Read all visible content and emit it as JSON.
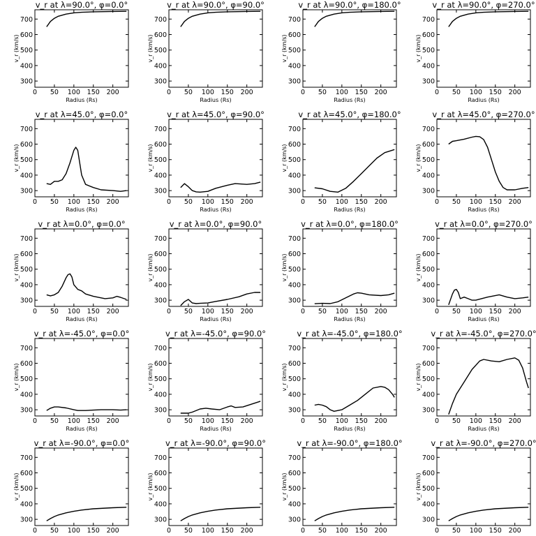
{
  "chart_data": [
    {
      "type": "line",
      "title": "v_r at λ=90.0°, φ=0.0°",
      "xlabel": "Radius (Rs)",
      "ylabel": "v_r (km/s)",
      "xlim": [
        0,
        240
      ],
      "ylim": [
        260,
        760
      ],
      "x_ticks": [
        0,
        50,
        100,
        150,
        200
      ],
      "y_ticks": [
        300,
        400,
        500,
        600,
        700
      ],
      "x": [
        30,
        40,
        50,
        60,
        80,
        100,
        120,
        150,
        200,
        235
      ],
      "y": [
        650,
        685,
        705,
        718,
        732,
        740,
        744,
        747,
        749,
        750
      ]
    },
    {
      "type": "line",
      "title": "v_r at λ=90.0°, φ=90.0°",
      "xlabel": "Radius (Rs)",
      "ylabel": "v_r (km/s)",
      "xlim": [
        0,
        240
      ],
      "ylim": [
        260,
        760
      ],
      "x_ticks": [
        0,
        50,
        100,
        150,
        200
      ],
      "y_ticks": [
        300,
        400,
        500,
        600,
        700
      ],
      "x": [
        30,
        40,
        50,
        60,
        80,
        100,
        120,
        150,
        200,
        235
      ],
      "y": [
        650,
        685,
        705,
        718,
        732,
        740,
        744,
        747,
        749,
        750
      ]
    },
    {
      "type": "line",
      "title": "v_r at λ=90.0°, φ=180.0°",
      "xlabel": "Radius (Rs)",
      "ylabel": "v_r (km/s)",
      "xlim": [
        0,
        240
      ],
      "ylim": [
        260,
        760
      ],
      "x_ticks": [
        0,
        50,
        100,
        150,
        200
      ],
      "y_ticks": [
        300,
        400,
        500,
        600,
        700
      ],
      "x": [
        30,
        40,
        50,
        60,
        80,
        100,
        120,
        150,
        200,
        235
      ],
      "y": [
        650,
        685,
        705,
        718,
        732,
        740,
        744,
        747,
        749,
        750
      ]
    },
    {
      "type": "line",
      "title": "v_r at λ=90.0°, φ=270.0°",
      "xlabel": "Radius (Rs)",
      "ylabel": "v_r (km/s)",
      "xlim": [
        0,
        240
      ],
      "ylim": [
        260,
        760
      ],
      "x_ticks": [
        0,
        50,
        100,
        150,
        200
      ],
      "y_ticks": [
        300,
        400,
        500,
        600,
        700
      ],
      "x": [
        30,
        40,
        50,
        60,
        80,
        100,
        120,
        150,
        200,
        235
      ],
      "y": [
        650,
        685,
        705,
        718,
        732,
        740,
        744,
        747,
        749,
        750
      ]
    },
    {
      "type": "line",
      "title": "v_r at λ=45.0°, φ=0.0°",
      "xlabel": "Radius (Rs)",
      "ylabel": "v_r (km/s)",
      "xlim": [
        0,
        240
      ],
      "ylim": [
        260,
        760
      ],
      "x_ticks": [
        0,
        50,
        100,
        150,
        200
      ],
      "y_ticks": [
        300,
        400,
        500,
        600,
        700
      ],
      "x": [
        30,
        40,
        50,
        60,
        70,
        80,
        90,
        100,
        105,
        110,
        115,
        120,
        130,
        150,
        170,
        200,
        220,
        235
      ],
      "y": [
        345,
        340,
        360,
        360,
        370,
        410,
        480,
        560,
        580,
        560,
        480,
        400,
        340,
        320,
        305,
        300,
        295,
        300
      ]
    },
    {
      "type": "line",
      "title": "v_r at λ=45.0°, φ=90.0°",
      "xlabel": "Radius (Rs)",
      "ylabel": "v_r (km/s)",
      "xlim": [
        0,
        240
      ],
      "ylim": [
        260,
        760
      ],
      "x_ticks": [
        0,
        50,
        100,
        150,
        200
      ],
      "y_ticks": [
        300,
        400,
        500,
        600,
        700
      ],
      "x": [
        30,
        40,
        50,
        60,
        70,
        80,
        100,
        120,
        150,
        170,
        200,
        220,
        235
      ],
      "y": [
        320,
        345,
        325,
        300,
        292,
        290,
        295,
        315,
        335,
        345,
        340,
        345,
        355
      ]
    },
    {
      "type": "line",
      "title": "v_r at λ=45.0°, φ=180.0°",
      "xlabel": "Radius (Rs)",
      "ylabel": "v_r (km/s)",
      "xlim": [
        0,
        240
      ],
      "ylim": [
        260,
        760
      ],
      "x_ticks": [
        0,
        50,
        100,
        150,
        200
      ],
      "y_ticks": [
        300,
        400,
        500,
        600,
        700
      ],
      "x": [
        30,
        50,
        70,
        90,
        110,
        130,
        150,
        170,
        190,
        210,
        235
      ],
      "y": [
        318,
        312,
        295,
        290,
        315,
        360,
        410,
        460,
        510,
        545,
        565
      ]
    },
    {
      "type": "line",
      "title": "v_r at λ=45.0°, φ=270.0°",
      "xlabel": "Radius (Rs)",
      "ylabel": "v_r (km/s)",
      "xlim": [
        0,
        240
      ],
      "ylim": [
        260,
        760
      ],
      "x_ticks": [
        0,
        50,
        100,
        150,
        200
      ],
      "y_ticks": [
        300,
        400,
        500,
        600,
        700
      ],
      "x": [
        30,
        40,
        50,
        70,
        90,
        100,
        110,
        120,
        130,
        140,
        150,
        160,
        170,
        180,
        200,
        220,
        235
      ],
      "y": [
        600,
        618,
        622,
        632,
        645,
        650,
        648,
        630,
        580,
        500,
        420,
        360,
        320,
        305,
        305,
        315,
        320
      ]
    },
    {
      "type": "line",
      "title": "v_r at λ=0.0°, φ=0.0°",
      "xlabel": "Radius (Rs)",
      "ylabel": "v_r (km/s)",
      "xlim": [
        0,
        240
      ],
      "ylim": [
        260,
        760
      ],
      "x_ticks": [
        0,
        50,
        100,
        150,
        200
      ],
      "y_ticks": [
        300,
        400,
        500,
        600,
        700
      ],
      "x": [
        30,
        40,
        50,
        60,
        70,
        80,
        85,
        90,
        95,
        100,
        110,
        120,
        130,
        150,
        180,
        200,
        210,
        220,
        235
      ],
      "y": [
        335,
        328,
        335,
        350,
        390,
        445,
        465,
        470,
        450,
        400,
        370,
        360,
        340,
        325,
        310,
        315,
        325,
        318,
        305
      ]
    },
    {
      "type": "line",
      "title": "v_r at λ=0.0°, φ=90.0°",
      "xlabel": "Radius (Rs)",
      "ylabel": "v_r (km/s)",
      "xlim": [
        0,
        240
      ],
      "ylim": [
        260,
        760
      ],
      "x_ticks": [
        0,
        50,
        100,
        150,
        200
      ],
      "y_ticks": [
        300,
        400,
        500,
        600,
        700
      ],
      "x": [
        30,
        40,
        50,
        60,
        70,
        80,
        100,
        120,
        150,
        180,
        200,
        220,
        235
      ],
      "y": [
        265,
        290,
        305,
        282,
        278,
        280,
        282,
        292,
        305,
        322,
        340,
        350,
        350
      ]
    },
    {
      "type": "line",
      "title": "v_r at λ=0.0°, φ=180.0°",
      "xlabel": "Radius (Rs)",
      "ylabel": "v_r (km/s)",
      "xlim": [
        0,
        240
      ],
      "ylim": [
        260,
        760
      ],
      "x_ticks": [
        0,
        50,
        100,
        150,
        200
      ],
      "y_ticks": [
        300,
        400,
        500,
        600,
        700
      ],
      "x": [
        30,
        50,
        70,
        90,
        110,
        130,
        140,
        150,
        170,
        200,
        220,
        235
      ],
      "y": [
        277,
        280,
        278,
        290,
        315,
        340,
        348,
        345,
        335,
        330,
        335,
        345
      ]
    },
    {
      "type": "line",
      "title": "v_r at λ=0.0°, φ=270.0°",
      "xlabel": "Radius (Rs)",
      "ylabel": "v_r (km/s)",
      "xlim": [
        0,
        240
      ],
      "ylim": [
        260,
        760
      ],
      "x_ticks": [
        0,
        50,
        100,
        150,
        200
      ],
      "y_ticks": [
        300,
        400,
        500,
        600,
        700
      ],
      "x": [
        30,
        40,
        45,
        50,
        55,
        60,
        70,
        80,
        90,
        100,
        130,
        160,
        180,
        200,
        220,
        235
      ],
      "y": [
        270,
        340,
        365,
        370,
        350,
        310,
        320,
        310,
        300,
        300,
        320,
        335,
        320,
        310,
        315,
        320
      ]
    },
    {
      "type": "line",
      "title": "v_r at λ=-45.0°, φ=0.0°",
      "xlabel": "Radius (Rs)",
      "ylabel": "v_r (km/s)",
      "xlim": [
        0,
        240
      ],
      "ylim": [
        260,
        760
      ],
      "x_ticks": [
        0,
        50,
        100,
        150,
        200
      ],
      "y_ticks": [
        300,
        400,
        500,
        600,
        700
      ],
      "x": [
        30,
        40,
        50,
        60,
        80,
        100,
        110,
        130,
        150,
        170,
        200,
        220,
        235
      ],
      "y": [
        295,
        310,
        318,
        318,
        312,
        300,
        295,
        295,
        298,
        300,
        300,
        298,
        300
      ]
    },
    {
      "type": "line",
      "title": "v_r at λ=-45.0°, φ=90.0°",
      "xlabel": "Radius (Rs)",
      "ylabel": "v_r (km/s)",
      "xlim": [
        0,
        240
      ],
      "ylim": [
        260,
        760
      ],
      "x_ticks": [
        0,
        50,
        100,
        150,
        200
      ],
      "y_ticks": [
        300,
        400,
        500,
        600,
        700
      ],
      "x": [
        30,
        50,
        60,
        80,
        95,
        110,
        130,
        150,
        160,
        170,
        190,
        210,
        235
      ],
      "y": [
        278,
        278,
        285,
        305,
        310,
        305,
        300,
        318,
        325,
        315,
        318,
        335,
        355
      ]
    },
    {
      "type": "line",
      "title": "v_r at λ=-45.0°, φ=180.0°",
      "xlabel": "Radius (Rs)",
      "ylabel": "v_r (km/s)",
      "xlim": [
        0,
        240
      ],
      "ylim": [
        260,
        760
      ],
      "x_ticks": [
        0,
        50,
        100,
        150,
        200
      ],
      "y_ticks": [
        300,
        400,
        500,
        600,
        700
      ],
      "x": [
        30,
        40,
        50,
        60,
        70,
        80,
        100,
        120,
        140,
        160,
        180,
        200,
        210,
        220,
        230,
        235
      ],
      "y": [
        330,
        335,
        330,
        320,
        300,
        290,
        300,
        330,
        360,
        400,
        440,
        450,
        445,
        430,
        400,
        380
      ]
    },
    {
      "type": "line",
      "title": "v_r at λ=-45.0°, φ=270.0°",
      "xlabel": "Radius (Rs)",
      "ylabel": "v_r (km/s)",
      "xlim": [
        0,
        240
      ],
      "ylim": [
        260,
        760
      ],
      "x_ticks": [
        0,
        50,
        100,
        150,
        200
      ],
      "y_ticks": [
        300,
        400,
        500,
        600,
        700
      ],
      "x": [
        30,
        40,
        50,
        70,
        90,
        110,
        120,
        140,
        160,
        180,
        200,
        210,
        220,
        230,
        235
      ],
      "y": [
        270,
        340,
        400,
        480,
        560,
        615,
        625,
        615,
        610,
        625,
        635,
        620,
        570,
        480,
        440
      ]
    },
    {
      "type": "line",
      "title": "v_r at λ=-90.0°, φ=0.0°",
      "xlabel": "Radius (Rs)",
      "ylabel": "v_r (km/s)",
      "xlim": [
        0,
        240
      ],
      "ylim": [
        260,
        760
      ],
      "x_ticks": [
        0,
        50,
        100,
        150,
        200
      ],
      "y_ticks": [
        300,
        400,
        500,
        600,
        700
      ],
      "x": [
        30,
        40,
        50,
        60,
        80,
        100,
        120,
        150,
        200,
        235
      ],
      "y": [
        290,
        305,
        318,
        328,
        342,
        352,
        360,
        368,
        375,
        378
      ]
    },
    {
      "type": "line",
      "title": "v_r at λ=-90.0°, φ=90.0°",
      "xlabel": "Radius (Rs)",
      "ylabel": "v_r (km/s)",
      "xlim": [
        0,
        240
      ],
      "ylim": [
        260,
        760
      ],
      "x_ticks": [
        0,
        50,
        100,
        150,
        200
      ],
      "y_ticks": [
        300,
        400,
        500,
        600,
        700
      ],
      "x": [
        30,
        40,
        50,
        60,
        80,
        100,
        120,
        150,
        200,
        235
      ],
      "y": [
        290,
        305,
        318,
        328,
        342,
        352,
        360,
        368,
        375,
        378
      ]
    },
    {
      "type": "line",
      "title": "v_r at λ=-90.0°, φ=180.0°",
      "xlabel": "Radius (Rs)",
      "ylabel": "v_r (km/s)",
      "xlim": [
        0,
        240
      ],
      "ylim": [
        260,
        760
      ],
      "x_ticks": [
        0,
        50,
        100,
        150,
        200
      ],
      "y_ticks": [
        300,
        400,
        500,
        600,
        700
      ],
      "x": [
        30,
        40,
        50,
        60,
        80,
        100,
        120,
        150,
        200,
        235
      ],
      "y": [
        290,
        305,
        318,
        328,
        342,
        352,
        360,
        368,
        375,
        378
      ]
    },
    {
      "type": "line",
      "title": "v_r at λ=-90.0°, φ=270.0°",
      "xlabel": "Radius (Rs)",
      "ylabel": "v_r (km/s)",
      "xlim": [
        0,
        240
      ],
      "ylim": [
        260,
        760
      ],
      "x_ticks": [
        0,
        50,
        100,
        150,
        200
      ],
      "y_ticks": [
        300,
        400,
        500,
        600,
        700
      ],
      "x": [
        30,
        40,
        50,
        60,
        80,
        100,
        120,
        150,
        200,
        235
      ],
      "y": [
        290,
        305,
        318,
        328,
        342,
        352,
        360,
        368,
        375,
        378
      ]
    }
  ]
}
